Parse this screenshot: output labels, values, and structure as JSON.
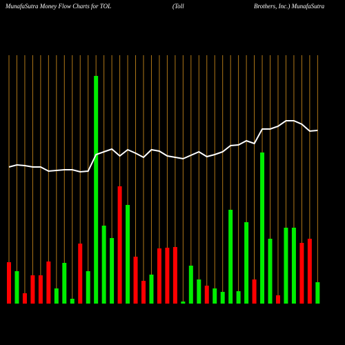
{
  "chart_data": {
    "type": "bar",
    "title": "MunafaSutra  Money Flow  Charts for TOL",
    "subtitle": "(Toll",
    "subtitle_right": "Brothers, Inc.) MunafaSutra",
    "ylim": [
      0,
      340
    ],
    "grid_color": "#b07818",
    "series": [
      {
        "name": "Money Flow",
        "colors": [
          "#ff0000",
          "#00ee00",
          "#ff0000",
          "#ff0000",
          "#ff0000",
          "#ff0000",
          "#00ee00",
          "#00ee00",
          "#00ee00",
          "#ff0000",
          "#00ee00",
          "#00ee00",
          "#00ee00",
          "#00ee00",
          "#ff0000",
          "#00ee00",
          "#ff0000",
          "#ff0000",
          "#00ee00",
          "#ff0000",
          "#ff0000",
          "#ff0000",
          "#00ee00",
          "#00ee00",
          "#00ee00",
          "#ff0000",
          "#00ee00",
          "#00ee00",
          "#00ee00",
          "#00ee00",
          "#00ee00",
          "#ff0000",
          "#00ee00",
          "#00ee00",
          "#ff0000",
          "#00ee00",
          "#00ee00",
          "#ff0000",
          "#ff0000",
          "#00ee00"
        ],
        "values": [
          60,
          47,
          15,
          41,
          41,
          61,
          22,
          59,
          7,
          87,
          47,
          330,
          113,
          95,
          170,
          143,
          68,
          33,
          42,
          80,
          81,
          82,
          3,
          55,
          35,
          26,
          22,
          17,
          136,
          18,
          118,
          35,
          219,
          94,
          12,
          110,
          110,
          88,
          94,
          31
        ]
      },
      {
        "name": "Price",
        "type": "line",
        "color": "#ffffff",
        "values": [
          198,
          201,
          200,
          198,
          198,
          192,
          193,
          194,
          194,
          191,
          192,
          216,
          220,
          224,
          214,
          223,
          218,
          212,
          223,
          221,
          214,
          212,
          210,
          215,
          220,
          213,
          216,
          220,
          229,
          230,
          236,
          232,
          253,
          253,
          257,
          265,
          265,
          260,
          250,
          251
        ]
      }
    ]
  }
}
